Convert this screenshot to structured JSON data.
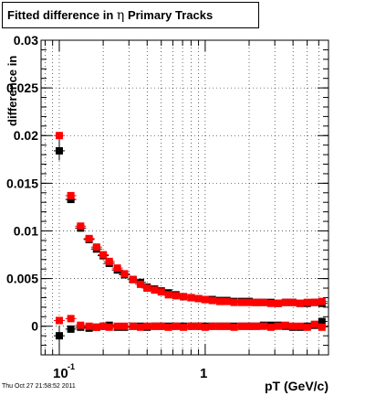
{
  "header": {
    "title_prefix": "Fitted difference in",
    "title_symbol": "η",
    "title_suffix": "Primary Tracks"
  },
  "footer": {
    "timestamp": "Thu Oct 27 21:58:52 2011"
  },
  "chart_data": {
    "type": "scatter",
    "title": "Fitted difference in η Primary Tracks",
    "xlabel": "pT (GeV/c)",
    "ylabel": "difference in",
    "xscale": "log",
    "xlim": [
      0.075,
      7.0
    ],
    "ylim": [
      -0.003,
      0.03
    ],
    "yticks": [
      0,
      0.005,
      0.01,
      0.015,
      0.02,
      0.025,
      0.03
    ],
    "ytick_labels": [
      "0",
      "0.005",
      "0.01",
      "0.015",
      "0.02",
      "0.025",
      "0.03"
    ],
    "xtick_labels": [
      "10⁻¹",
      "1"
    ],
    "grid": true,
    "colors": {
      "series_black": "#000000",
      "series_red": "#ff0000"
    },
    "series": [
      {
        "name": "",
        "color": "#000000",
        "x": [
          0.1,
          0.12,
          0.14,
          0.16,
          0.18,
          0.2,
          0.22,
          0.25,
          0.28,
          0.32,
          0.36,
          0.4,
          0.45,
          0.5,
          0.56,
          0.63,
          0.71,
          0.8,
          0.9,
          1.0,
          1.12,
          1.26,
          1.41,
          1.58,
          1.78,
          2.0,
          2.24,
          2.51,
          2.82,
          3.16,
          3.55,
          3.98,
          4.47,
          5.01,
          5.62,
          6.31
        ],
        "y": [
          0.0184,
          0.0133,
          0.0103,
          0.0091,
          0.0081,
          0.0074,
          0.0066,
          0.0059,
          0.0054,
          0.0049,
          0.0046,
          0.0041,
          0.0039,
          0.0037,
          0.0035,
          0.0033,
          0.0031,
          0.003,
          0.0029,
          0.0028,
          0.0028,
          0.0027,
          0.0027,
          0.0026,
          0.0026,
          0.0026,
          0.0025,
          0.0025,
          0.0025,
          0.0024,
          0.0025,
          0.0025,
          0.0024,
          0.0024,
          0.0025,
          0.0024
        ]
      },
      {
        "name": "",
        "color": "#ff0000",
        "x": [
          0.1,
          0.12,
          0.14,
          0.16,
          0.18,
          0.2,
          0.22,
          0.25,
          0.28,
          0.32,
          0.36,
          0.4,
          0.45,
          0.5,
          0.56,
          0.63,
          0.71,
          0.8,
          0.9,
          1.0,
          1.12,
          1.26,
          1.41,
          1.58,
          1.78,
          2.0,
          2.24,
          2.51,
          2.82,
          3.16,
          3.55,
          3.98,
          4.47,
          5.01,
          5.62,
          6.31
        ],
        "y": [
          0.02,
          0.0137,
          0.0105,
          0.0092,
          0.0083,
          0.0075,
          0.0068,
          0.0061,
          0.0055,
          0.0049,
          0.0044,
          0.004,
          0.0038,
          0.0036,
          0.0033,
          0.0032,
          0.0031,
          0.003,
          0.0029,
          0.0028,
          0.0027,
          0.0026,
          0.0026,
          0.0025,
          0.0025,
          0.0025,
          0.0025,
          0.0025,
          0.0024,
          0.0024,
          0.0025,
          0.0025,
          0.0024,
          0.0025,
          0.0025,
          0.0026
        ]
      },
      {
        "name": "",
        "color": "#000000",
        "x": [
          0.1,
          0.12,
          0.14,
          0.16,
          0.18,
          0.2,
          0.22,
          0.25,
          0.28,
          0.32,
          0.36,
          0.4,
          0.45,
          0.5,
          0.56,
          0.63,
          0.71,
          0.8,
          0.9,
          1.0,
          1.12,
          1.26,
          1.41,
          1.58,
          1.78,
          2.0,
          2.24,
          2.51,
          2.82,
          3.16,
          3.55,
          3.98,
          4.47,
          5.01,
          5.62,
          6.31
        ],
        "y": [
          -0.001,
          -0.0003,
          -0.0001,
          -0.0002,
          -0.0001,
          0.0,
          0.0001,
          -0.0001,
          -0.0001,
          0.0,
          0.0,
          -0.0001,
          0.0,
          0.0,
          0.0,
          0.0,
          0.0,
          0.0,
          0.0,
          0.0,
          0.0,
          0.0,
          0.0,
          0.0,
          0.0,
          0.0,
          0.0,
          0.0001,
          0.0001,
          0.0001,
          0.0,
          -0.0001,
          -0.0001,
          0.0,
          0.0001,
          0.0005
        ]
      },
      {
        "name": "",
        "color": "#ff0000",
        "x": [
          0.1,
          0.12,
          0.14,
          0.16,
          0.18,
          0.2,
          0.22,
          0.25,
          0.28,
          0.32,
          0.36,
          0.4,
          0.45,
          0.5,
          0.56,
          0.63,
          0.71,
          0.8,
          0.9,
          1.0,
          1.12,
          1.26,
          1.41,
          1.58,
          1.78,
          2.0,
          2.24,
          2.51,
          2.82,
          3.16,
          3.55,
          3.98,
          4.47,
          5.01,
          5.62,
          6.31
        ],
        "y": [
          0.0006,
          0.0008,
          0.0001,
          0.0,
          -0.0001,
          0.0,
          -0.0001,
          0.0,
          0.0,
          0.0,
          -0.0001,
          0.0,
          0.0,
          0.0,
          -0.0001,
          0.0,
          -0.0001,
          0.0,
          0.0,
          -0.0001,
          0.0,
          0.0,
          0.0,
          -0.0001,
          0.0,
          0.0,
          0.0,
          0.0,
          -0.0001,
          0.0,
          0.0001,
          0.0,
          0.0,
          -0.0001,
          0.0002,
          -0.0001
        ]
      }
    ],
    "errors": {
      "first_point_black_high_y": 0.0012,
      "first_point_black_low_y": 0.001
    }
  }
}
